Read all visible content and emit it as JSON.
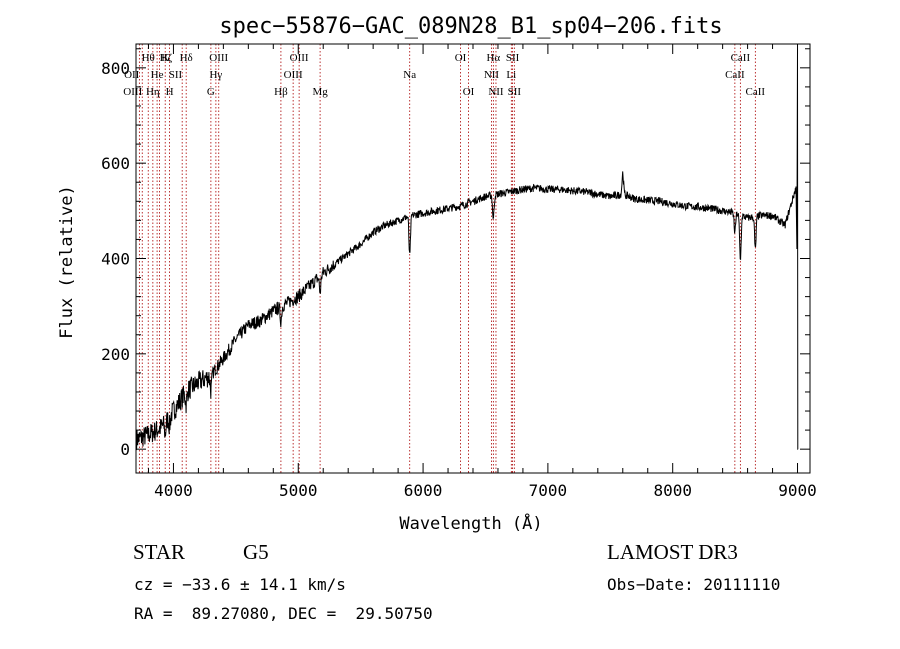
{
  "chart_data": {
    "type": "line",
    "title": "spec−55876−GAC_089N28_B1_sp04−206.fits",
    "xlabel": "Wavelength (Å)",
    "ylabel": "Flux (relative)",
    "xlim": [
      3700,
      9100
    ],
    "ylim": [
      -50,
      850
    ],
    "xticks": [
      4000,
      5000,
      6000,
      7000,
      8000,
      9000
    ],
    "yticks": [
      0,
      200,
      400,
      600,
      800
    ],
    "grid": false,
    "line_color": "#000000",
    "marker_line_color": "#aa0000",
    "series": [
      {
        "values_x": [
          3700,
          3800,
          3900,
          4000,
          4100,
          4200,
          4300,
          4400,
          4500,
          4600,
          4700,
          4800,
          4900,
          5000,
          5100,
          5200,
          5300,
          5400,
          5500,
          5600,
          5700,
          5800,
          5900,
          6000,
          6100,
          6200,
          6300,
          6400,
          6500,
          6600,
          6700,
          6800,
          6900,
          7000,
          7100,
          7200,
          7300,
          7400,
          7500,
          7600,
          7700,
          7800,
          7900,
          8000,
          8100,
          8200,
          8300,
          8400,
          8500,
          8600,
          8700,
          8800,
          8900,
          9000
        ],
        "values_y": [
          20,
          30,
          45,
          80,
          120,
          140,
          155,
          190,
          230,
          260,
          270,
          290,
          305,
          320,
          345,
          370,
          390,
          410,
          430,
          455,
          470,
          480,
          490,
          495,
          500,
          505,
          510,
          520,
          530,
          535,
          540,
          545,
          548,
          545,
          545,
          542,
          540,
          535,
          530,
          535,
          525,
          522,
          520,
          515,
          510,
          508,
          505,
          500,
          495,
          485,
          490,
          490,
          470,
          560
        ]
      }
    ],
    "absorption_features": [
      {
        "x": 3934,
        "depth": 25
      },
      {
        "x": 3969,
        "depth": 20
      },
      {
        "x": 4102,
        "depth": 25
      },
      {
        "x": 4300,
        "depth": 30
      },
      {
        "x": 4861,
        "depth": 30
      },
      {
        "x": 5175,
        "depth": 35
      },
      {
        "x": 5893,
        "depth": 85
      },
      {
        "x": 6563,
        "depth": 50
      },
      {
        "x": 8498,
        "depth": 40
      },
      {
        "x": 8542,
        "depth": 95
      },
      {
        "x": 8662,
        "depth": 70
      }
    ],
    "emission_features": [
      {
        "x": 7600,
        "height": 45
      }
    ],
    "lines": [
      {
        "x": 3727,
        "label": "OII",
        "row": 1,
        "anchor": "end"
      },
      {
        "x": 3750,
        "label": "OIII",
        "row": 2,
        "anchor": "end"
      },
      {
        "x": 3798,
        "label": "Hθ",
        "row": 0,
        "anchor": "middle"
      },
      {
        "x": 3835,
        "label": "Hη",
        "row": 2,
        "anchor": "middle"
      },
      {
        "x": 3869,
        "label": "He",
        "row": 1,
        "anchor": "middle"
      },
      {
        "x": 3889,
        "label": "Hζ",
        "row": 0,
        "anchor": "start"
      },
      {
        "x": 3934,
        "label": "K",
        "row": 0,
        "anchor": "middle"
      },
      {
        "x": 3969,
        "label": "H",
        "row": 2,
        "anchor": "middle"
      },
      {
        "x": 4070,
        "label": "SII",
        "row": 1,
        "anchor": "end"
      },
      {
        "x": 4102,
        "label": "Hδ",
        "row": 0,
        "anchor": "middle"
      },
      {
        "x": 4300,
        "label": "G",
        "row": 2,
        "anchor": "middle"
      },
      {
        "x": 4340,
        "label": "Hγ",
        "row": 1,
        "anchor": "middle"
      },
      {
        "x": 4363,
        "label": "OIII",
        "row": 0,
        "anchor": "middle"
      },
      {
        "x": 4861,
        "label": "Hβ",
        "row": 2,
        "anchor": "middle"
      },
      {
        "x": 4959,
        "label": "OIII",
        "row": 1,
        "anchor": "middle"
      },
      {
        "x": 5007,
        "label": "OIII",
        "row": 0,
        "anchor": "middle"
      },
      {
        "x": 5175,
        "label": "Mg",
        "row": 2,
        "anchor": "middle"
      },
      {
        "x": 5893,
        "label": "Na",
        "row": 1,
        "anchor": "middle"
      },
      {
        "x": 6300,
        "label": "OI",
        "row": 0,
        "anchor": "middle"
      },
      {
        "x": 6364,
        "label": "OI",
        "row": 2,
        "anchor": "middle"
      },
      {
        "x": 6548,
        "label": "NII",
        "row": 1,
        "anchor": "middle"
      },
      {
        "x": 6563,
        "label": "Hα",
        "row": 0,
        "anchor": "middle"
      },
      {
        "x": 6584,
        "label": "NII",
        "row": 2,
        "anchor": "middle"
      },
      {
        "x": 6707,
        "label": "Li",
        "row": 1,
        "anchor": "middle"
      },
      {
        "x": 6717,
        "label": "SII",
        "row": 0,
        "anchor": "middle"
      },
      {
        "x": 6731,
        "label": "SII",
        "row": 2,
        "anchor": "middle"
      },
      {
        "x": 8498,
        "label": "CaII",
        "row": 1,
        "anchor": "middle"
      },
      {
        "x": 8542,
        "label": "CaII",
        "row": 0,
        "anchor": "middle"
      },
      {
        "x": 8662,
        "label": "CaII",
        "row": 2,
        "anchor": "middle"
      }
    ]
  },
  "info": {
    "class": "STAR",
    "subclass": "G5",
    "survey": "LAMOST DR3",
    "velocity": "cz = −33.6 ± 14.1 km/s",
    "obs_date": "Obs−Date: 20111110",
    "coords": "RA =  89.27080, DEC =  29.50750"
  }
}
